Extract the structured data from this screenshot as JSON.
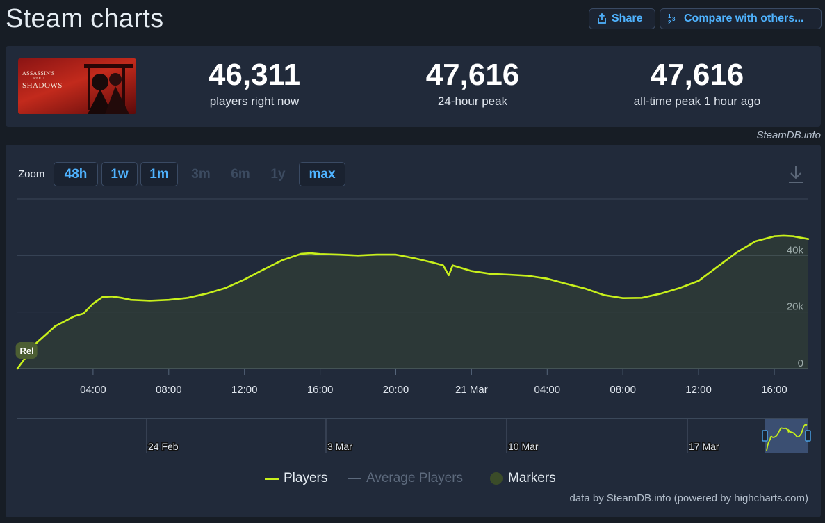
{
  "page": {
    "title": "Steam charts"
  },
  "toolbar": {
    "share_label": "Share",
    "compare_label": "Compare with others..."
  },
  "game": {
    "cover_text": [
      "ASSASSIN'S",
      "CREED",
      "SHADOWS"
    ]
  },
  "stats": [
    {
      "value": "46,311",
      "label": "players right now"
    },
    {
      "value": "47,616",
      "label": "24-hour peak"
    },
    {
      "value": "47,616",
      "label": "all-time peak 1 hour ago"
    }
  ],
  "credit": "SteamDB.info",
  "zoom": {
    "label": "Zoom",
    "buttons": [
      {
        "label": "48h",
        "enabled": true
      },
      {
        "label": "1w",
        "enabled": true
      },
      {
        "label": "1m",
        "enabled": true
      },
      {
        "label": "3m",
        "enabled": false
      },
      {
        "label": "6m",
        "enabled": false
      },
      {
        "label": "1y",
        "enabled": false
      },
      {
        "label": "max",
        "enabled": true
      }
    ]
  },
  "chart_data": {
    "type": "line",
    "series": [
      {
        "name": "Players",
        "color": "#c8f01b",
        "x_hours": [
          0,
          1,
          2,
          3,
          3.5,
          4,
          4.5,
          5,
          5.5,
          6,
          7,
          8,
          9,
          10,
          11,
          12,
          13,
          14,
          15,
          15.5,
          16,
          17,
          18,
          19,
          20,
          21,
          22,
          22.5,
          22.8,
          23,
          24,
          25,
          26,
          27,
          28,
          29,
          30,
          31,
          32,
          33,
          34,
          35,
          36,
          37,
          38,
          39,
          40,
          40.5,
          41,
          41.8
        ],
        "y": [
          0,
          9000,
          15000,
          18500,
          19500,
          23000,
          25300,
          25500,
          25000,
          24300,
          24000,
          24300,
          25000,
          26500,
          28500,
          31500,
          35000,
          38300,
          40600,
          40800,
          40500,
          40300,
          40000,
          40300,
          40300,
          39000,
          37400,
          36500,
          33000,
          36500,
          34500,
          33500,
          33200,
          32800,
          31800,
          30000,
          28300,
          26000,
          24900,
          25000,
          26500,
          28500,
          31000,
          36000,
          41000,
          45000,
          46800,
          47000,
          46800,
          45800
        ]
      },
      {
        "name": "Average Players",
        "hidden": true
      },
      {
        "name": "Markers"
      }
    ],
    "x_tick_labels": [
      "04:00",
      "08:00",
      "12:00",
      "16:00",
      "20:00",
      "21 Mar",
      "04:00",
      "08:00",
      "12:00",
      "16:00"
    ],
    "x_tick_hours": [
      4,
      8,
      12,
      16,
      20,
      24,
      28,
      32,
      36,
      40
    ],
    "y_tick_labels": [
      "0",
      "20k",
      "40k"
    ],
    "y_tick_values": [
      0,
      20000,
      40000
    ],
    "ylim": [
      0,
      60000
    ],
    "xlim": [
      0,
      41.8
    ],
    "annotations": [
      {
        "label": "Rel",
        "x_hours": 0.5
      }
    ],
    "navigator": {
      "labels": [
        "24 Feb",
        "3 Mar",
        "10 Mar",
        "17 Mar"
      ]
    },
    "grid": true
  },
  "legend": [
    "Players",
    "Average Players",
    "Markers"
  ],
  "footer": "data by SteamDB.info (powered by highcharts.com)"
}
